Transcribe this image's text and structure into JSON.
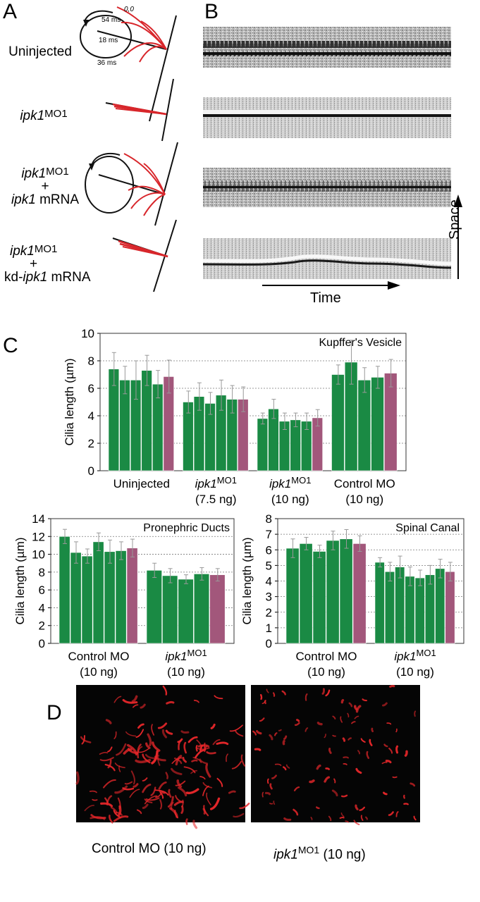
{
  "panels": {
    "a": "A",
    "b": "B",
    "c": "C",
    "d": "D"
  },
  "panel_a": {
    "uninjected": "Uninjected",
    "frame_labels": [
      "0,0",
      "54 ms",
      "18 ms",
      "36 ms"
    ],
    "row2": {
      "gene": "ipk1",
      "sup": "MO1"
    },
    "row3": {
      "gene": "ipk1",
      "sup": "MO1",
      "plus": "+",
      "mrna_gene": "ipk1",
      "mrna": " mRNA"
    },
    "row4": {
      "gene": "ipk1",
      "sup": "MO1",
      "plus": "+",
      "kd_prefix": "kd-",
      "mrna_gene": "ipk1",
      "mrna": " mRNA"
    }
  },
  "panel_b": {
    "time_label": "Time",
    "space_label": "Space"
  },
  "colors": {
    "green_bar": "#1a8a44",
    "mean_bar": "#a2577b",
    "cilia_red": "#e8272a",
    "waveform_red": "#d8262b"
  },
  "chart_data": [
    {
      "type": "bar",
      "title": "Kupffer's Vesicle",
      "ylabel": "Cilia length (µm)",
      "ylim": [
        0,
        10
      ],
      "yticks": [
        "0",
        "2",
        "4",
        "6",
        "8",
        "10"
      ],
      "grid": true,
      "groups": [
        {
          "label_lines": [
            "Uninjected"
          ],
          "values": [
            7.4,
            6.6,
            6.6,
            7.3,
            6.3
          ],
          "errors": [
            1.2,
            1.0,
            1.4,
            1.1,
            1.0
          ],
          "mean": 6.85,
          "mean_error": 1.2
        },
        {
          "label_gene": "ipk1",
          "label_sup": "MO1",
          "label_sub": "(7.5 ng)",
          "values": [
            5.0,
            5.4,
            4.9,
            5.5,
            5.2
          ],
          "errors": [
            0.8,
            1.0,
            0.8,
            1.1,
            1.0
          ],
          "mean": 5.2,
          "mean_error": 0.9
        },
        {
          "label_gene": "ipk1",
          "label_sup": "MO1",
          "label_sub": "(10 ng)",
          "values": [
            3.8,
            4.5,
            3.6,
            3.7,
            3.6
          ],
          "errors": [
            0.4,
            0.7,
            0.6,
            0.5,
            0.6
          ],
          "mean": 3.85,
          "mean_error": 0.6
        },
        {
          "label_lines": [
            "Control MO",
            "(10 ng)"
          ],
          "values": [
            7.0,
            7.9,
            6.6,
            6.8
          ],
          "errors": [
            0.7,
            1.6,
            0.9,
            0.8
          ],
          "mean": 7.1,
          "mean_error": 1.0
        }
      ]
    },
    {
      "type": "bar",
      "title": "Pronephric Ducts",
      "ylabel": "Cilia length (µm)",
      "ylim": [
        0,
        14
      ],
      "yticks": [
        "0",
        "2",
        "4",
        "6",
        "8",
        "10",
        "12",
        "14"
      ],
      "grid": true,
      "groups": [
        {
          "label_lines": [
            "Control MO",
            "(10 ng)"
          ],
          "values": [
            12.0,
            10.2,
            9.8,
            11.4,
            10.3,
            10.4
          ],
          "errors": [
            0.8,
            1.2,
            0.8,
            1.0,
            1.3,
            1.0
          ],
          "mean": 10.7,
          "mean_error": 1.0
        },
        {
          "label_gene": "ipk1",
          "label_sup": "MO1",
          "label_sub": "(10 ng)",
          "values": [
            8.2,
            7.6,
            7.2,
            7.8
          ],
          "errors": [
            0.8,
            0.8,
            0.5,
            0.7
          ],
          "mean": 7.7,
          "mean_error": 0.7
        }
      ]
    },
    {
      "type": "bar",
      "title": "Spinal Canal",
      "ylabel": "Cilia length (µm)",
      "ylim": [
        0,
        8
      ],
      "yticks": [
        "0",
        "1",
        "2",
        "3",
        "4",
        "5",
        "6",
        "7",
        "8"
      ],
      "grid": true,
      "groups": [
        {
          "label_lines": [
            "Control MO",
            "(10 ng)"
          ],
          "values": [
            6.1,
            6.4,
            5.9,
            6.6,
            6.7
          ],
          "errors": [
            0.6,
            0.4,
            0.4,
            0.6,
            0.6
          ],
          "mean": 6.4,
          "mean_error": 0.5
        },
        {
          "label_gene": "ipk1",
          "label_sup": "MO1",
          "label_sub": "(10 ng)",
          "values": [
            5.2,
            4.6,
            4.9,
            4.3,
            4.2,
            4.4,
            4.8
          ],
          "errors": [
            0.3,
            0.6,
            0.7,
            0.6,
            0.5,
            0.6,
            0.6
          ],
          "mean": 4.6,
          "mean_error": 0.6
        }
      ]
    }
  ],
  "panel_d": {
    "left_caption": "Control MO (10 ng)",
    "right_gene": "ipk1",
    "right_sup": "MO1",
    "right_rest": " (10 ng)"
  }
}
